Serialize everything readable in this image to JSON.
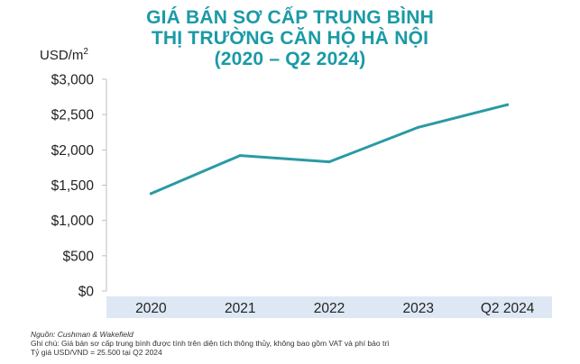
{
  "chart_data": {
    "type": "line",
    "title_lines": [
      "GIÁ BÁN SƠ CẤP TRUNG BÌNH",
      "THỊ TRƯỜNG CĂN HỘ HÀ NỘI",
      "(2020 – Q2 2024)"
    ],
    "ylabel_text": "USD/m",
    "ylabel_sup": "2",
    "categories": [
      "2020",
      "2021",
      "2022",
      "2023",
      "Q2 2024"
    ],
    "values": [
      1380,
      1920,
      1830,
      2320,
      2640
    ],
    "ylim": [
      0,
      3000
    ],
    "yticks": [
      0,
      500,
      1000,
      1500,
      2000,
      2500,
      3000
    ],
    "ytick_labels": [
      "$0",
      "$500",
      "$1,000",
      "$1,500",
      "$2,000",
      "$2,500",
      "$3,000"
    ],
    "grid": false,
    "line_color": "#2a9aa5",
    "xband_color": "#dde8f4",
    "title_color": "#1a9aa6"
  },
  "notes": {
    "source": "Nguồn: Cushman & Wakefield",
    "note": "Ghi chú: Giá bán sơ cấp trung bình được tính trên diện tích thông thủy, không bao gồm VAT và phí bảo trì",
    "rate": "Tỷ giá USD/VND = 25.500 tại Q2 2024"
  }
}
